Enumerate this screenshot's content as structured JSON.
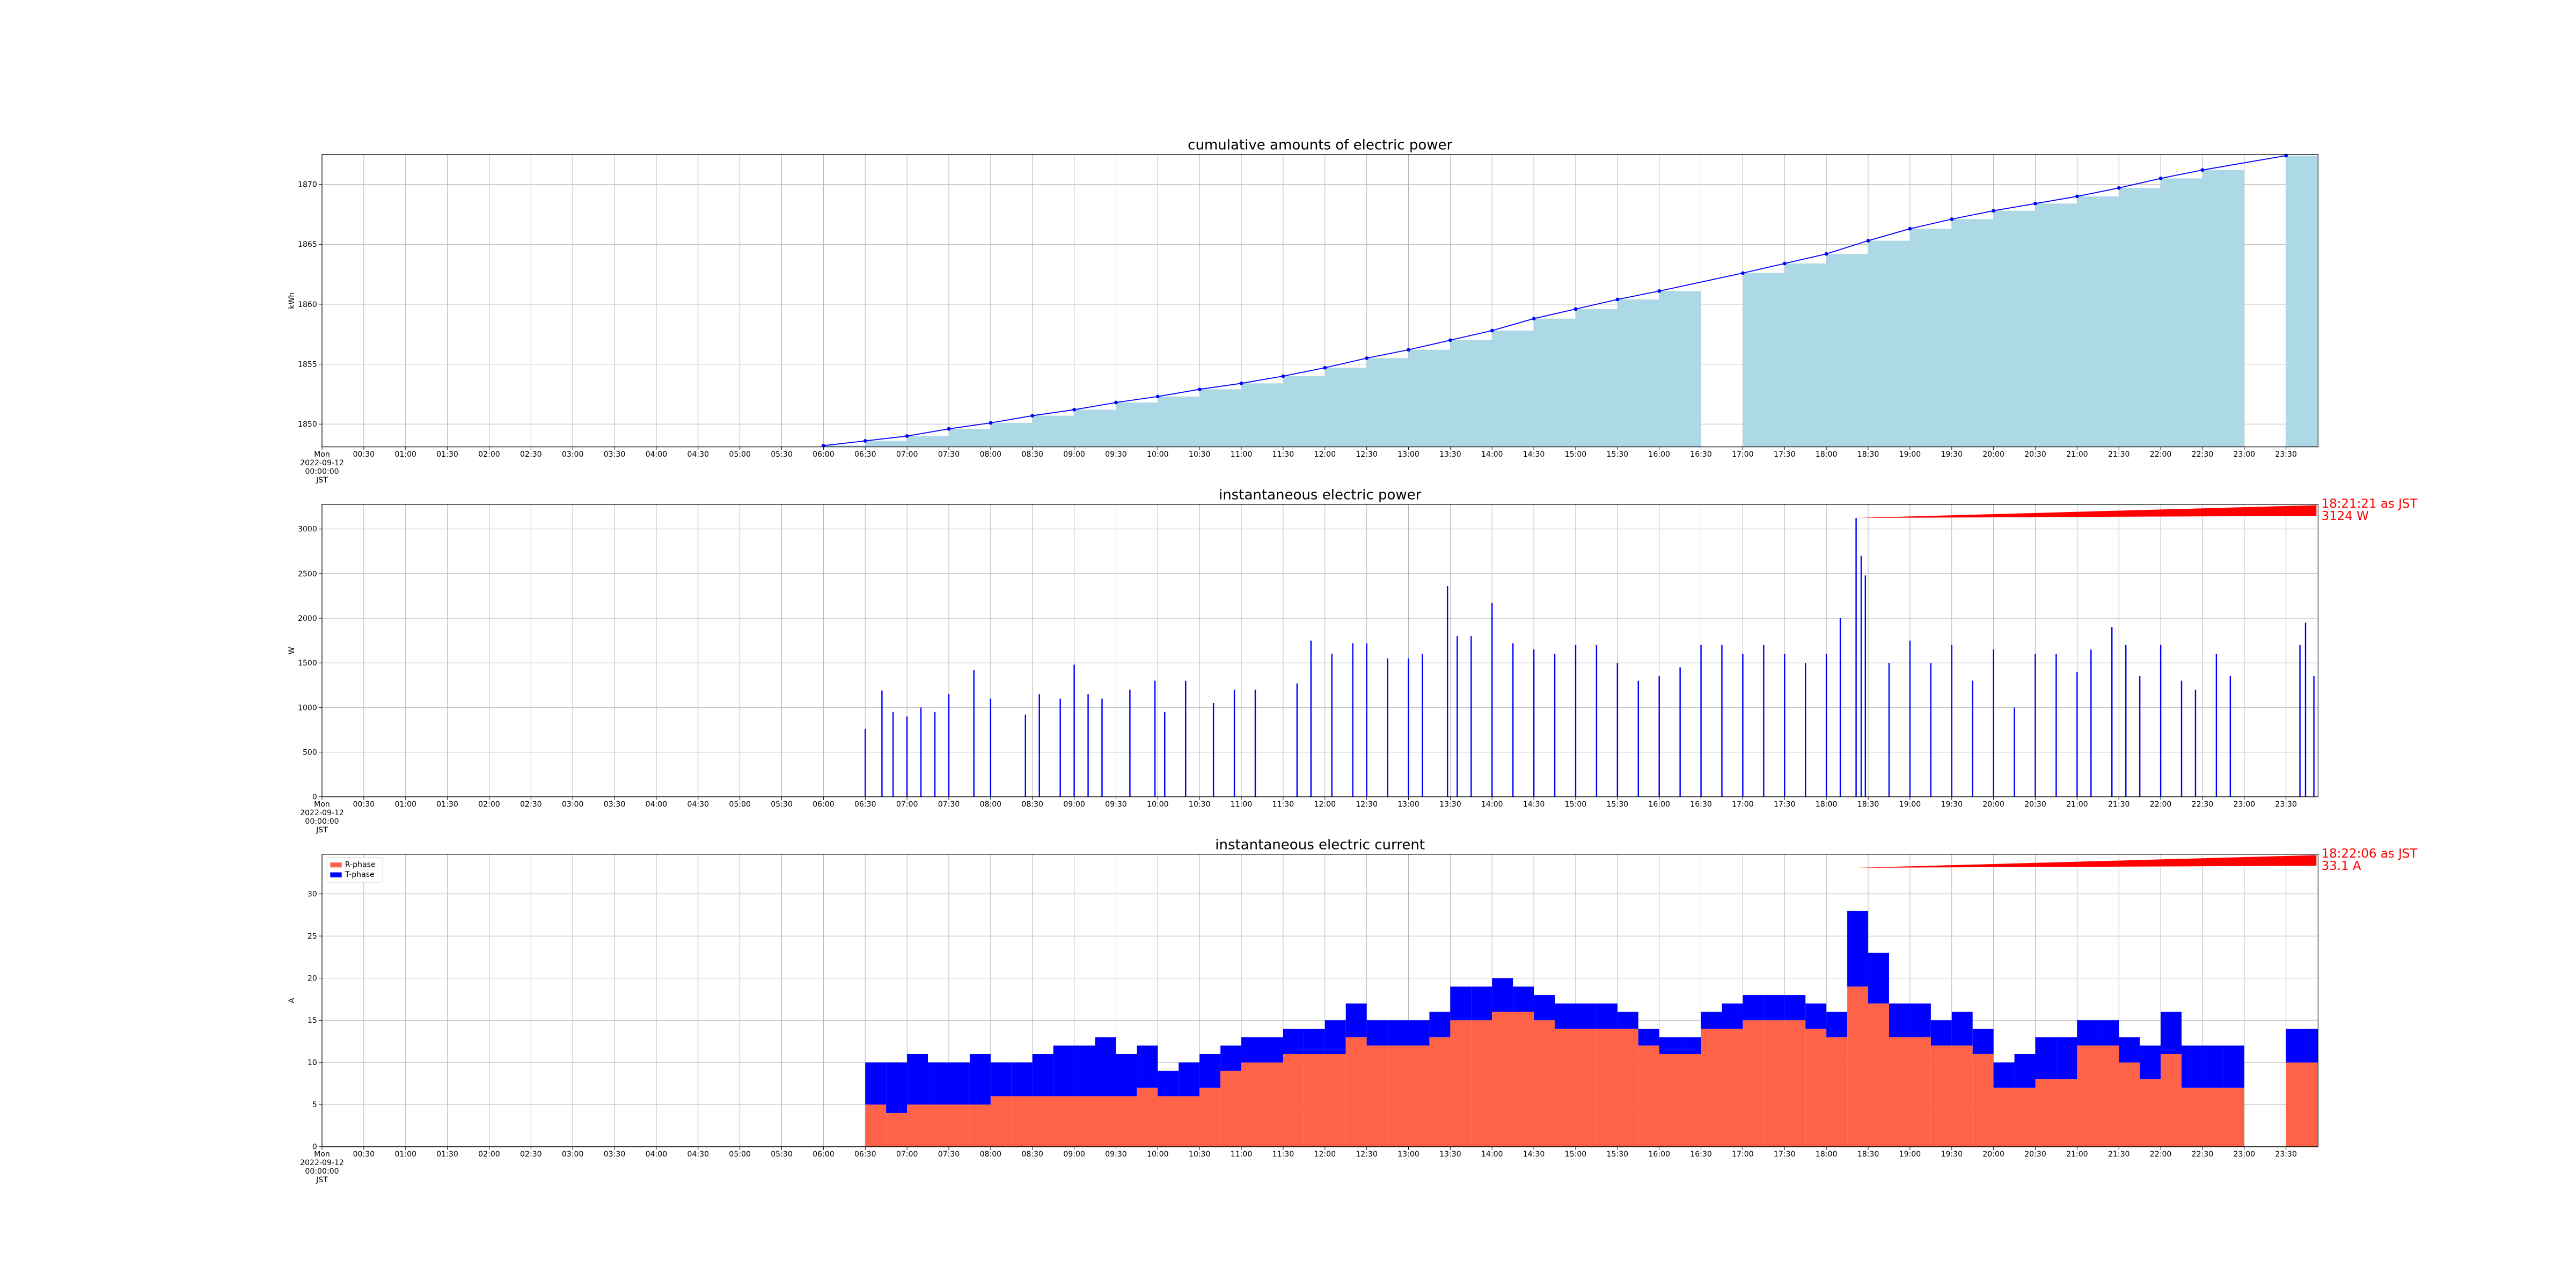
{
  "chart_data": [
    {
      "type": "bar",
      "title": "cumulative amounts of electric power",
      "ylabel": "kWh",
      "x": [
        "06:00",
        "06:30",
        "07:00",
        "07:30",
        "08:00",
        "08:30",
        "09:00",
        "09:30",
        "10:00",
        "10:30",
        "11:00",
        "11:30",
        "12:00",
        "12:30",
        "13:00",
        "13:30",
        "14:00",
        "14:30",
        "15:00",
        "15:30",
        "16:00",
        "17:00",
        "17:30",
        "18:00",
        "18:30",
        "19:00",
        "19:30",
        "20:00",
        "20:30",
        "21:00",
        "21:30",
        "22:00",
        "22:30",
        "23:30"
      ],
      "values": [
        1848.2,
        1848.6,
        1849.0,
        1849.6,
        1850.1,
        1850.7,
        1851.2,
        1851.8,
        1852.3,
        1852.9,
        1853.4,
        1854.0,
        1854.7,
        1855.5,
        1856.2,
        1857.0,
        1857.8,
        1858.8,
        1859.6,
        1860.4,
        1861.1,
        1862.6,
        1863.4,
        1864.2,
        1865.3,
        1866.3,
        1867.1,
        1867.8,
        1868.4,
        1869.0,
        1869.7,
        1870.5,
        1871.2,
        1872.4
      ],
      "color": "#add8e6",
      "line_color": "#0000ff",
      "xlim": [
        "00:00",
        "23:53"
      ],
      "ylim": [
        1848.1,
        1872.5
      ],
      "yticks": [
        1850,
        1855,
        1860,
        1865,
        1870
      ],
      "grid": true,
      "xticks": [
        {
          "value": "00:00",
          "label": "Mon\n2022-09-12\n00:00:00\nJST"
        },
        "00:30",
        "01:00",
        "01:30",
        "02:00",
        "02:30",
        "03:00",
        "03:30",
        "04:00",
        "04:30",
        "05:00",
        "05:30",
        "06:00",
        "06:30",
        "07:00",
        "07:30",
        "08:00",
        "08:30",
        "09:00",
        "09:30",
        "10:00",
        "10:30",
        "11:00",
        "11:30",
        "12:00",
        "12:30",
        "13:00",
        "13:30",
        "14:00",
        "14:30",
        "15:00",
        "15:30",
        "16:00",
        "16:30",
        "17:00",
        "17:30",
        "18:00",
        "18:30",
        "19:00",
        "19:30",
        "20:00",
        "20:30",
        "21:00",
        "21:30",
        "22:00",
        "22:30",
        "23:00",
        "23:30"
      ]
    },
    {
      "type": "spike",
      "title": "instantaneous electric power",
      "ylabel": "W",
      "x": [
        "06:30",
        "06:42",
        "06:50",
        "07:00",
        "07:10",
        "07:20",
        "07:30",
        "07:48",
        "08:00",
        "08:25",
        "08:35",
        "08:50",
        "09:00",
        "09:10",
        "09:20",
        "09:40",
        "09:58",
        "10:05",
        "10:20",
        "10:40",
        "10:55",
        "11:10",
        "11:40",
        "11:50",
        "12:05",
        "12:20",
        "12:30",
        "12:45",
        "13:00",
        "13:10",
        "13:28",
        "13:35",
        "13:45",
        "14:00",
        "14:15",
        "14:30",
        "14:45",
        "15:00",
        "15:15",
        "15:30",
        "15:45",
        "16:00",
        "16:15",
        "16:30",
        "16:45",
        "17:00",
        "17:15",
        "17:30",
        "17:45",
        "18:00",
        "18:10",
        "18:21:21",
        "18:25",
        "18:28",
        "18:45",
        "19:00",
        "19:15",
        "19:30",
        "19:45",
        "20:00",
        "20:15",
        "20:30",
        "20:45",
        "21:00",
        "21:10",
        "21:25",
        "21:35",
        "21:45",
        "22:00",
        "22:15",
        "22:25",
        "22:40",
        "22:50",
        "23:40",
        "23:44",
        "23:50"
      ],
      "values": [
        760,
        1190,
        950,
        900,
        1000,
        950,
        1150,
        1420,
        1100,
        920,
        1150,
        1100,
        1480,
        1150,
        1100,
        1200,
        1300,
        950,
        1300,
        1050,
        1200,
        1200,
        1270,
        1750,
        1600,
        1720,
        1720,
        1550,
        1550,
        1600,
        2360,
        1800,
        1800,
        2170,
        1720,
        1650,
        1600,
        1700,
        1700,
        1500,
        1300,
        1350,
        1450,
        1700,
        1700,
        1600,
        1700,
        1600,
        1500,
        1600,
        2000,
        3124,
        2700,
        2480,
        1500,
        1750,
        1500,
        1700,
        1300,
        1650,
        1000,
        1600,
        1600,
        1400,
        1650,
        1900,
        1700,
        1350,
        1700,
        1300,
        1200,
        1600,
        1350,
        1700,
        1950,
        1350
      ],
      "color": "#0000ff",
      "annotation": {
        "text": "18:21:21 as JST\n3124 W",
        "x": "18:21:21",
        "y": 3124,
        "color": "#ff0000"
      },
      "xlim": [
        "00:00",
        "23:53"
      ],
      "ylim": [
        0,
        3276
      ],
      "yticks": [
        0,
        500,
        1000,
        1500,
        2000,
        2500,
        3000
      ],
      "grid": true,
      "xticks": [
        {
          "value": "00:00",
          "label": "Mon\n2022-09-12\n00:00:00\nJST"
        },
        "00:30",
        "01:00",
        "01:30",
        "02:00",
        "02:30",
        "03:00",
        "03:30",
        "04:00",
        "04:30",
        "05:00",
        "05:30",
        "06:00",
        "06:30",
        "07:00",
        "07:30",
        "08:00",
        "08:30",
        "09:00",
        "09:30",
        "10:00",
        "10:30",
        "11:00",
        "11:30",
        "12:00",
        "12:30",
        "13:00",
        "13:30",
        "14:00",
        "14:30",
        "15:00",
        "15:30",
        "16:00",
        "16:30",
        "17:00",
        "17:30",
        "18:00",
        "18:30",
        "19:00",
        "19:30",
        "20:00",
        "20:30",
        "21:00",
        "21:30",
        "22:00",
        "22:30",
        "23:00",
        "23:30"
      ]
    },
    {
      "type": "stacked",
      "title": "instantaneous electric current",
      "ylabel": "A",
      "x": [
        "06:30",
        "06:45",
        "07:00",
        "07:15",
        "07:30",
        "07:45",
        "08:00",
        "08:15",
        "08:30",
        "08:45",
        "09:00",
        "09:15",
        "09:30",
        "09:45",
        "10:00",
        "10:15",
        "10:30",
        "10:45",
        "11:00",
        "11:15",
        "11:30",
        "11:45",
        "12:00",
        "12:15",
        "12:30",
        "12:45",
        "13:00",
        "13:15",
        "13:30",
        "13:45",
        "14:00",
        "14:15",
        "14:30",
        "14:45",
        "15:00",
        "15:15",
        "15:30",
        "15:45",
        "16:00",
        "16:15",
        "16:30",
        "16:45",
        "17:00",
        "17:15",
        "17:30",
        "17:45",
        "18:00",
        "18:15",
        "18:30",
        "18:45",
        "19:00",
        "19:15",
        "19:30",
        "19:45",
        "20:00",
        "20:15",
        "20:30",
        "20:45",
        "21:00",
        "21:15",
        "21:30",
        "21:45",
        "22:00",
        "22:15",
        "22:30",
        "22:45",
        "23:30",
        "23:45"
      ],
      "series": [
        {
          "name": "R-phase",
          "color": "#ff6347",
          "values": [
            5,
            4,
            5,
            5,
            5,
            5,
            6,
            6,
            6,
            6,
            6,
            6,
            6,
            7,
            6,
            6,
            7,
            9,
            10,
            10,
            11,
            11,
            11,
            13,
            12,
            12,
            12,
            13,
            15,
            15,
            16,
            16,
            15,
            14,
            14,
            14,
            14,
            12,
            11,
            11,
            14,
            14,
            15,
            15,
            15,
            14,
            13,
            19,
            17,
            13,
            13,
            12,
            12,
            11,
            7,
            7,
            8,
            8,
            12,
            12,
            10,
            8,
            11,
            7,
            7,
            7,
            10,
            10
          ]
        },
        {
          "name": "T-phase",
          "color": "#0000ff",
          "values": [
            5,
            6,
            6,
            5,
            5,
            6,
            4,
            4,
            5,
            6,
            6,
            7,
            5,
            5,
            3,
            4,
            4,
            3,
            3,
            3,
            3,
            3,
            4,
            4,
            3,
            3,
            3,
            3,
            4,
            4,
            4,
            3,
            3,
            3,
            3,
            3,
            2,
            2,
            2,
            2,
            2,
            3,
            3,
            3,
            3,
            3,
            3,
            9,
            6,
            4,
            4,
            3,
            4,
            3,
            3,
            4,
            5,
            5,
            3,
            3,
            3,
            4,
            5,
            5,
            5,
            5,
            4,
            4
          ]
        }
      ],
      "legend": "upper left",
      "annotation": {
        "text": "18:22:06 as JST\n33.1 A",
        "x": "18:22:06",
        "y": 33.1,
        "color": "#ff0000"
      },
      "xlim": [
        "00:00",
        "23:53"
      ],
      "ylim": [
        0,
        34.7
      ],
      "yticks": [
        0,
        5,
        10,
        15,
        20,
        25,
        30
      ],
      "grid": true,
      "xticks": [
        {
          "value": "00:00",
          "label": "Mon\n2022-09-12\n00:00:00\nJST"
        },
        "00:30",
        "01:00",
        "01:30",
        "02:00",
        "02:30",
        "03:00",
        "03:30",
        "04:00",
        "04:30",
        "05:00",
        "05:30",
        "06:00",
        "06:30",
        "07:00",
        "07:30",
        "08:00",
        "08:30",
        "09:00",
        "09:30",
        "10:00",
        "10:30",
        "11:00",
        "11:30",
        "12:00",
        "12:30",
        "13:00",
        "13:30",
        "14:00",
        "14:30",
        "15:00",
        "15:30",
        "16:00",
        "16:30",
        "17:00",
        "17:30",
        "18:00",
        "18:30",
        "19:00",
        "19:30",
        "20:00",
        "20:30",
        "21:00",
        "21:30",
        "22:00",
        "22:30",
        "23:00",
        "23:30"
      ]
    }
  ]
}
